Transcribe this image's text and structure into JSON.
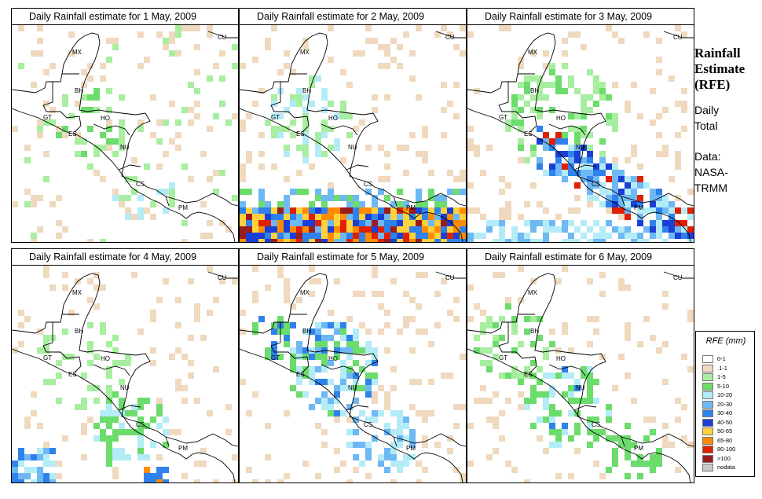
{
  "panels": [
    {
      "title": "Daily Rainfall estimate for  1 May, 2009",
      "rain_pattern": "light-scattered"
    },
    {
      "title": "Daily Rainfall estimate for  2 May, 2009",
      "rain_pattern": "heavy-south"
    },
    {
      "title": "Daily Rainfall estimate for  3 May, 2009",
      "rain_pattern": "heavy-pacific-coast"
    },
    {
      "title": "Daily Rainfall estimate for  4 May, 2009",
      "rain_pattern": "southwest-band"
    },
    {
      "title": "Daily Rainfall estimate for  5 May, 2009",
      "rain_pattern": "inland-moderate"
    },
    {
      "title": "Daily Rainfall estimate for  6 May, 2009",
      "rain_pattern": "light-central"
    }
  ],
  "country_labels": [
    "MX",
    "CU",
    "BH",
    "GT",
    "HO",
    "ES",
    "NU",
    "CS",
    "PM"
  ],
  "side_panel": {
    "title_lines": [
      "Rainfall",
      "Estimate",
      "(RFE)"
    ],
    "subtitle_lines": [
      "Daily",
      "Total"
    ],
    "source_lines": [
      "Data:",
      "NASA-",
      "TRMM"
    ]
  },
  "legend": {
    "title": "RFE (mm)",
    "items": [
      {
        "label": "0-1",
        "color": "#ffffff"
      },
      {
        "label": ".1-1",
        "color": "#efd9bf"
      },
      {
        "label": "1-5",
        "color": "#a8eea0"
      },
      {
        "label": "5-10",
        "color": "#6cdc6c"
      },
      {
        "label": "10-20",
        "color": "#b3ecf7"
      },
      {
        "label": "20-30",
        "color": "#6eb8f4"
      },
      {
        "label": "30-40",
        "color": "#2f82ec"
      },
      {
        "label": "40-50",
        "color": "#1a3fd6"
      },
      {
        "label": "50-65",
        "color": "#ffd23c"
      },
      {
        "label": "65-80",
        "color": "#ff8c00"
      },
      {
        "label": "80-100",
        "color": "#e02000"
      },
      {
        "label": ">100",
        "color": "#9b1c1c"
      },
      {
        "label": "nodata",
        "color": "#c8c8c8"
      }
    ]
  }
}
